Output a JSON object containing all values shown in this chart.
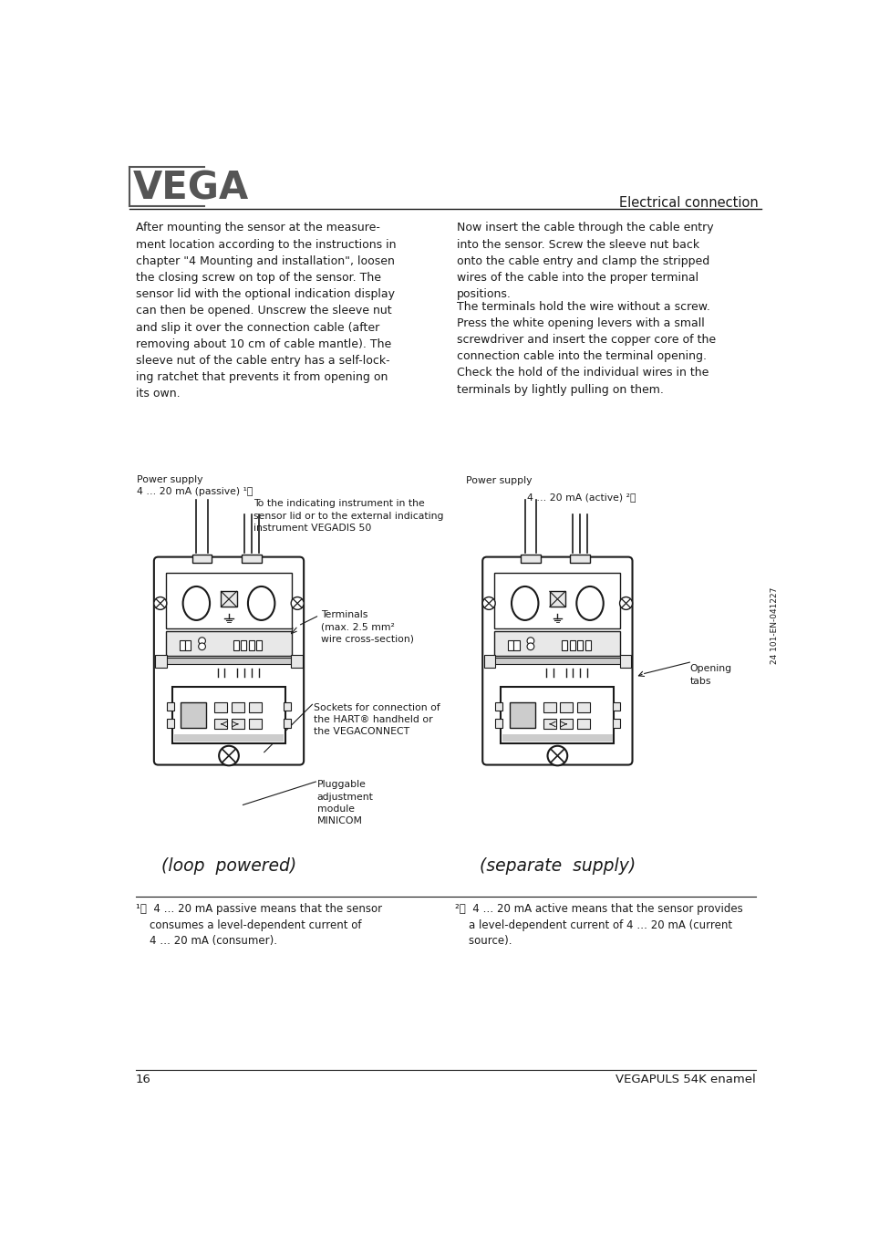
{
  "page_bg": "#ffffff",
  "header_logo_text": "VEGA",
  "header_right_text": "Electrical connection",
  "footer_left_text": "16",
  "footer_right_text": "VEGAPULS 54K enamel",
  "footer_side_text": "24 101-EN-041227",
  "body_left_para1": "After mounting the sensor at the measure-\nment location according to the instructions in\nchapter \"4 Mounting and installation\", loosen\nthe closing screw on top of the sensor. The\nsensor lid with the optional indication display\ncan then be opened. Unscrew the sleeve nut\nand slip it over the connection cable (after\nremoving about 10 cm of cable mantle). The\nsleeve nut of the cable entry has a self-lock-\ning ratchet that prevents it from opening on\nits own.",
  "body_right_para1": "Now insert the cable through the cable entry\ninto the sensor. Screw the sleeve nut back\nonto the cable entry and clamp the stripped\nwires of the cable into the proper terminal\npositions.",
  "body_right_para2": "The terminals hold the wire without a screw.\nPress the white opening levers with a small\nscrewdriver and insert the copper core of the\nconnection cable into the terminal opening.\nCheck the hold of the individual wires in the\nterminals by lightly pulling on them.",
  "diagram_left_caption": "(loop  powered)",
  "diagram_right_caption": "(separate  supply)",
  "text_color": "#1a1a1a",
  "line_color": "#1a1a1a",
  "gray_light": "#e8e8e8",
  "gray_mid": "#cccccc",
  "gray_dark": "#888888"
}
